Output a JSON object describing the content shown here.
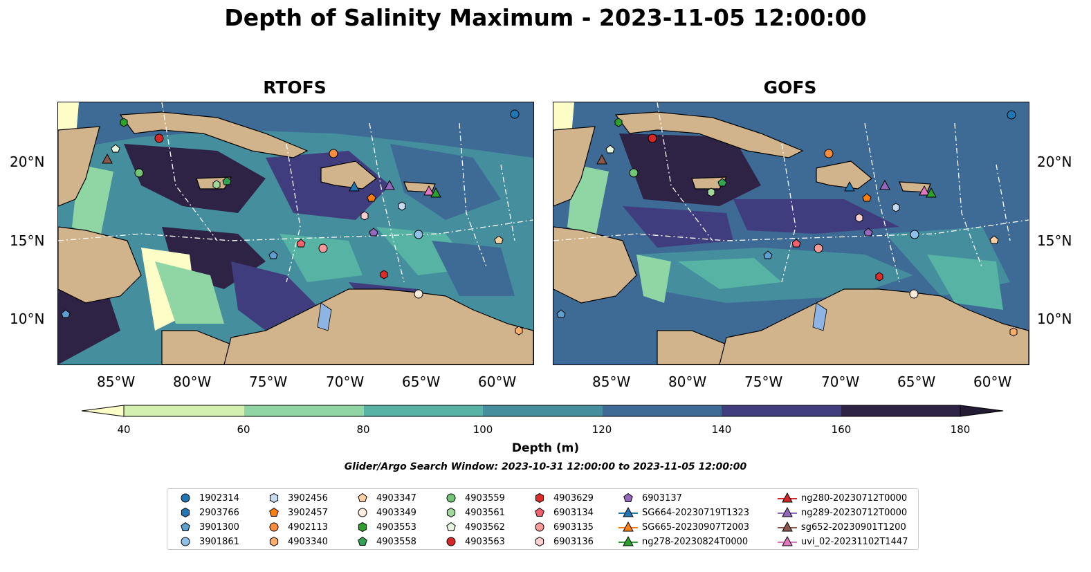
{
  "title": "Depth of Salinity Maximum - 2023-11-05 12:00:00",
  "panels": [
    {
      "title": "RTOFS"
    },
    {
      "title": "GOFS"
    }
  ],
  "axes": {
    "lat_ticks": [
      "20°N",
      "15°N",
      "10°N"
    ],
    "lon_ticks": [
      "85°W",
      "80°W",
      "75°W",
      "70°W",
      "65°W",
      "60°W"
    ]
  },
  "colorbar": {
    "label": "Depth (m)",
    "ticks": [
      "40",
      "60",
      "80",
      "100",
      "120",
      "140",
      "160",
      "180"
    ],
    "colors": [
      "#fdfdc8",
      "#d4f0b0",
      "#8fd6a4",
      "#57b3a3",
      "#448e9e",
      "#3e6b95",
      "#403d7f",
      "#2e2245",
      "#231a33"
    ]
  },
  "search_window": "Glider/Argo Search Window: 2023-10-31 12:00:00 to 2023-11-05 12:00:00",
  "colors": {
    "land": "#d2b48c",
    "water_feature": "#8db4e2"
  },
  "legend": [
    {
      "label": "1902314",
      "marker": "circle",
      "color": "#1f77b4"
    },
    {
      "label": "2903766",
      "marker": "hexagon",
      "color": "#1f77b4"
    },
    {
      "label": "3901300",
      "marker": "pentagon",
      "color": "#5d9fd1"
    },
    {
      "label": "3901861",
      "marker": "circle",
      "color": "#8fc1e8"
    },
    {
      "label": "3902456",
      "marker": "hexagon",
      "color": "#c6dbef"
    },
    {
      "label": "3902457",
      "marker": "pentagon",
      "color": "#ff7f0e"
    },
    {
      "label": "4902113",
      "marker": "circle",
      "color": "#fd8d3c"
    },
    {
      "label": "4903340",
      "marker": "hexagon",
      "color": "#fdae6b"
    },
    {
      "label": "4903347",
      "marker": "pentagon",
      "color": "#fdd0a2"
    },
    {
      "label": "4903349",
      "marker": "circle",
      "color": "#feeddc"
    },
    {
      "label": "4903553",
      "marker": "hexagon",
      "color": "#2ca02c"
    },
    {
      "label": "4903558",
      "marker": "pentagon",
      "color": "#31a354"
    },
    {
      "label": "4903559",
      "marker": "circle",
      "color": "#74c476"
    },
    {
      "label": "4903561",
      "marker": "hexagon",
      "color": "#a1d99b"
    },
    {
      "label": "4903562",
      "marker": "pentagon",
      "color": "#e5f5e0"
    },
    {
      "label": "4903563",
      "marker": "circle",
      "color": "#d62728"
    },
    {
      "label": "4903629",
      "marker": "hexagon",
      "color": "#de2d26"
    },
    {
      "label": "6903134",
      "marker": "pentagon",
      "color": "#f0616b"
    },
    {
      "label": "6903135",
      "marker": "circle",
      "color": "#fc9a9a"
    },
    {
      "label": "6903136",
      "marker": "hexagon",
      "color": "#fdd0d0"
    },
    {
      "label": "6903137",
      "marker": "pentagon",
      "color": "#9467bd"
    },
    {
      "label": "SG664-20230719T1323",
      "marker": "triangle",
      "color": "#1f77b4",
      "line": true
    },
    {
      "label": "SG665-20230907T2003",
      "marker": "triangle",
      "color": "#ff7f0e",
      "line": true
    },
    {
      "label": "ng278-20230824T0000",
      "marker": "triangle",
      "color": "#2ca02c",
      "line": true
    },
    {
      "label": "ng280-20230712T0000",
      "marker": "triangle",
      "color": "#d62728",
      "line": true
    },
    {
      "label": "ng289-20230712T0000",
      "marker": "triangle",
      "color": "#9467bd",
      "line": true
    },
    {
      "label": "sg652-20230901T1200",
      "marker": "triangle",
      "color": "#8c564b",
      "line": true
    },
    {
      "label": "uvi_02-20231102T1447",
      "marker": "triangle",
      "color": "#e377c2",
      "line": true
    }
  ]
}
